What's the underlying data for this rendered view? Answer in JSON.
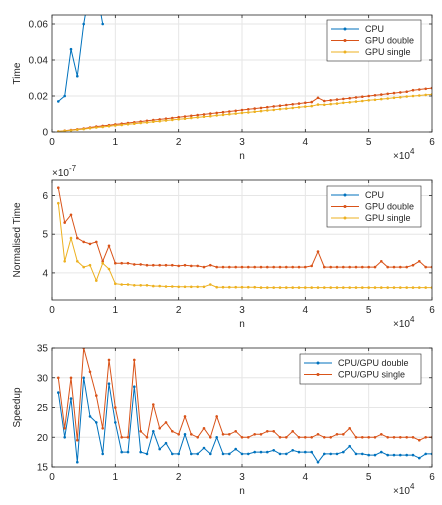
{
  "colors": {
    "cpu": "#0072BD",
    "gpu_double": "#D95319",
    "gpu_single": "#EDB120",
    "speedup_double": "#0072BD",
    "speedup_single": "#D95319",
    "axis": "#262626",
    "grid": "#e6e6e6"
  },
  "chart_data": [
    {
      "type": "line",
      "xlabel": "n",
      "ylabel": "Time",
      "x_multiplier_label": "×10",
      "x_multiplier_exp": "4",
      "y_multiplier_label": "",
      "y_multiplier_exp": "",
      "xlim": [
        0,
        60000
      ],
      "ylim": [
        0,
        0.065
      ],
      "x_ticks": [
        0,
        10000,
        20000,
        30000,
        40000,
        50000,
        60000
      ],
      "x_tick_labels": [
        "0",
        "1",
        "2",
        "3",
        "4",
        "5",
        "6"
      ],
      "y_ticks": [
        0,
        0.02,
        0.04,
        0.06
      ],
      "y_tick_labels": [
        "0",
        "0.02",
        "0.04",
        "0.06"
      ],
      "grid": true,
      "legend_position": "top-right",
      "series": [
        {
          "name": "CPU",
          "color_key": "cpu",
          "x": [
            1000,
            2000,
            3000,
            4000,
            5000,
            6000,
            7000,
            8000
          ],
          "y": [
            0.017,
            0.02,
            0.046,
            0.031,
            0.06,
            0.08,
            0.08,
            0.06
          ]
        },
        {
          "name": "GPU double",
          "color_key": "gpu_double",
          "x": [
            1000,
            2000,
            3000,
            4000,
            5000,
            6000,
            7000,
            8000,
            9000,
            10000,
            11000,
            12000,
            13000,
            14000,
            15000,
            16000,
            17000,
            18000,
            19000,
            20000,
            21000,
            22000,
            23000,
            24000,
            25000,
            26000,
            27000,
            28000,
            29000,
            30000,
            31000,
            32000,
            33000,
            34000,
            35000,
            36000,
            37000,
            38000,
            39000,
            40000,
            41000,
            42000,
            43000,
            44000,
            45000,
            46000,
            47000,
            48000,
            49000,
            50000,
            51000,
            52000,
            53000,
            54000,
            55000,
            56000,
            57000,
            58000,
            59000,
            60000
          ],
          "y": [
            0.0003,
            0.0007,
            0.0011,
            0.0015,
            0.0019,
            0.0025,
            0.003,
            0.0034,
            0.0038,
            0.0042,
            0.0046,
            0.005,
            0.0054,
            0.0058,
            0.0062,
            0.0066,
            0.007,
            0.0074,
            0.0078,
            0.0082,
            0.0086,
            0.009,
            0.0094,
            0.0098,
            0.0102,
            0.0106,
            0.011,
            0.0114,
            0.0118,
            0.0122,
            0.0126,
            0.013,
            0.0134,
            0.0138,
            0.0142,
            0.0146,
            0.015,
            0.0154,
            0.0158,
            0.0162,
            0.0166,
            0.019,
            0.0172,
            0.0176,
            0.018,
            0.0184,
            0.0188,
            0.0192,
            0.0196,
            0.02,
            0.0204,
            0.0208,
            0.0212,
            0.0216,
            0.022,
            0.0224,
            0.0232,
            0.0236,
            0.024,
            0.0244
          ]
        },
        {
          "name": "GPU single",
          "color_key": "gpu_single",
          "x": [
            1000,
            2000,
            3000,
            4000,
            5000,
            6000,
            7000,
            8000,
            9000,
            10000,
            11000,
            12000,
            13000,
            14000,
            15000,
            16000,
            17000,
            18000,
            19000,
            20000,
            21000,
            22000,
            23000,
            24000,
            25000,
            26000,
            27000,
            28000,
            29000,
            30000,
            31000,
            32000,
            33000,
            34000,
            35000,
            36000,
            37000,
            38000,
            39000,
            40000,
            41000,
            42000,
            43000,
            44000,
            45000,
            46000,
            47000,
            48000,
            49000,
            50000,
            51000,
            52000,
            53000,
            54000,
            55000,
            56000,
            57000,
            58000,
            59000,
            60000
          ],
          "y": [
            0.0003,
            0.0006,
            0.0009,
            0.0013,
            0.0016,
            0.0021,
            0.0025,
            0.0028,
            0.0032,
            0.0036,
            0.0039,
            0.0043,
            0.0046,
            0.005,
            0.0053,
            0.0057,
            0.006,
            0.0064,
            0.0067,
            0.0071,
            0.0074,
            0.0078,
            0.0081,
            0.0085,
            0.0088,
            0.0092,
            0.0095,
            0.0099,
            0.0102,
            0.0106,
            0.0109,
            0.0113,
            0.0116,
            0.012,
            0.0123,
            0.0127,
            0.013,
            0.0134,
            0.0137,
            0.0141,
            0.0144,
            0.0152,
            0.0151,
            0.0155,
            0.0158,
            0.0162,
            0.0165,
            0.0169,
            0.0172,
            0.0176,
            0.0179,
            0.0183,
            0.0186,
            0.019,
            0.0193,
            0.0197,
            0.02,
            0.0203,
            0.0206,
            0.0209
          ]
        }
      ]
    },
    {
      "type": "line",
      "xlabel": "n",
      "ylabel": "Normalised Time",
      "x_multiplier_label": "×10",
      "x_multiplier_exp": "4",
      "y_multiplier_label": "×10",
      "y_multiplier_exp": "-7",
      "xlim": [
        0,
        60000
      ],
      "ylim": [
        3.3,
        6.4
      ],
      "x_ticks": [
        0,
        10000,
        20000,
        30000,
        40000,
        50000,
        60000
      ],
      "x_tick_labels": [
        "0",
        "1",
        "2",
        "3",
        "4",
        "5",
        "6"
      ],
      "y_ticks": [
        4,
        5,
        6
      ],
      "y_tick_labels": [
        "4",
        "5",
        "6"
      ],
      "grid": true,
      "legend_position": "top-right",
      "series": [
        {
          "name": "CPU",
          "color_key": "cpu",
          "x": [],
          "y": []
        },
        {
          "name": "GPU double",
          "color_key": "gpu_double",
          "x": [
            1000,
            2000,
            3000,
            4000,
            5000,
            6000,
            7000,
            8000,
            9000,
            10000,
            11000,
            12000,
            13000,
            14000,
            15000,
            16000,
            17000,
            18000,
            19000,
            20000,
            21000,
            22000,
            23000,
            24000,
            25000,
            26000,
            27000,
            28000,
            29000,
            30000,
            31000,
            32000,
            33000,
            34000,
            35000,
            36000,
            37000,
            38000,
            39000,
            40000,
            41000,
            42000,
            43000,
            44000,
            45000,
            46000,
            47000,
            48000,
            49000,
            50000,
            51000,
            52000,
            53000,
            54000,
            55000,
            56000,
            57000,
            58000,
            59000,
            60000
          ],
          "y": [
            6.2,
            5.3,
            5.5,
            4.9,
            4.8,
            4.75,
            4.8,
            4.3,
            4.7,
            4.25,
            4.25,
            4.25,
            4.22,
            4.22,
            4.2,
            4.2,
            4.2,
            4.2,
            4.2,
            4.18,
            4.2,
            4.18,
            4.18,
            4.15,
            4.2,
            4.15,
            4.15,
            4.15,
            4.15,
            4.15,
            4.15,
            4.15,
            4.15,
            4.15,
            4.15,
            4.15,
            4.15,
            4.15,
            4.15,
            4.15,
            4.18,
            4.55,
            4.15,
            4.15,
            4.15,
            4.15,
            4.15,
            4.15,
            4.15,
            4.15,
            4.15,
            4.3,
            4.15,
            4.15,
            4.15,
            4.15,
            4.2,
            4.3,
            4.15,
            4.15
          ]
        },
        {
          "name": "GPU single",
          "color_key": "gpu_single",
          "x": [
            1000,
            2000,
            3000,
            4000,
            5000,
            6000,
            7000,
            8000,
            9000,
            10000,
            11000,
            12000,
            13000,
            14000,
            15000,
            16000,
            17000,
            18000,
            19000,
            20000,
            21000,
            22000,
            23000,
            24000,
            25000,
            26000,
            27000,
            28000,
            29000,
            30000,
            31000,
            32000,
            33000,
            34000,
            35000,
            36000,
            37000,
            38000,
            39000,
            40000,
            41000,
            42000,
            43000,
            44000,
            45000,
            46000,
            47000,
            48000,
            49000,
            50000,
            51000,
            52000,
            53000,
            54000,
            55000,
            56000,
            57000,
            58000,
            59000,
            60000
          ],
          "y": [
            5.8,
            4.3,
            4.9,
            4.3,
            4.15,
            4.2,
            3.8,
            4.25,
            4.1,
            3.72,
            3.7,
            3.7,
            3.68,
            3.68,
            3.68,
            3.66,
            3.66,
            3.65,
            3.65,
            3.64,
            3.64,
            3.64,
            3.64,
            3.64,
            3.7,
            3.63,
            3.63,
            3.63,
            3.63,
            3.63,
            3.63,
            3.63,
            3.62,
            3.62,
            3.62,
            3.62,
            3.62,
            3.62,
            3.62,
            3.62,
            3.62,
            3.62,
            3.62,
            3.62,
            3.62,
            3.62,
            3.62,
            3.62,
            3.62,
            3.62,
            3.62,
            3.62,
            3.62,
            3.62,
            3.62,
            3.62,
            3.62,
            3.62,
            3.62,
            3.62
          ]
        }
      ]
    },
    {
      "type": "line",
      "xlabel": "n",
      "ylabel": "Speedup",
      "x_multiplier_label": "×10",
      "x_multiplier_exp": "4",
      "y_multiplier_label": "",
      "y_multiplier_exp": "",
      "xlim": [
        0,
        60000
      ],
      "ylim": [
        15,
        35
      ],
      "x_ticks": [
        0,
        10000,
        20000,
        30000,
        40000,
        50000,
        60000
      ],
      "x_tick_labels": [
        "0",
        "1",
        "2",
        "3",
        "4",
        "5",
        "6"
      ],
      "y_ticks": [
        15,
        20,
        25,
        30,
        35
      ],
      "y_tick_labels": [
        "15",
        "20",
        "25",
        "30",
        "35"
      ],
      "grid": true,
      "legend_position": "top-right",
      "series": [
        {
          "name": "CPU/GPU double",
          "color_key": "speedup_double",
          "x": [
            1000,
            2000,
            3000,
            4000,
            5000,
            6000,
            7000,
            8000,
            9000,
            10000,
            11000,
            12000,
            13000,
            14000,
            15000,
            16000,
            17000,
            18000,
            19000,
            20000,
            21000,
            22000,
            23000,
            24000,
            25000,
            26000,
            27000,
            28000,
            29000,
            30000,
            31000,
            32000,
            33000,
            34000,
            35000,
            36000,
            37000,
            38000,
            39000,
            40000,
            41000,
            42000,
            43000,
            44000,
            45000,
            46000,
            47000,
            48000,
            49000,
            50000,
            51000,
            52000,
            53000,
            54000,
            55000,
            56000,
            57000,
            58000,
            59000,
            60000
          ],
          "y": [
            27.5,
            20,
            26.5,
            15.8,
            30,
            23.5,
            22.5,
            17.2,
            29,
            22.5,
            17.5,
            17.5,
            28.5,
            17.5,
            17.2,
            21,
            18,
            19,
            17.2,
            17.2,
            20.5,
            17.2,
            17.2,
            18.2,
            17.2,
            20,
            17.2,
            17.2,
            18,
            17.2,
            17.2,
            17.5,
            17.5,
            17.5,
            17.8,
            17.2,
            17.2,
            17.8,
            17.5,
            17.5,
            17.5,
            15.8,
            17.2,
            17.2,
            17.2,
            17.5,
            18.5,
            17.2,
            17.2,
            17,
            17,
            17.5,
            17,
            17,
            17,
            17,
            17,
            16.5,
            17.2,
            17.2
          ]
        },
        {
          "name": "CPU/GPU single",
          "color_key": "speedup_single",
          "x": [
            1000,
            2000,
            3000,
            4000,
            5000,
            6000,
            7000,
            8000,
            9000,
            10000,
            11000,
            12000,
            13000,
            14000,
            15000,
            16000,
            17000,
            18000,
            19000,
            20000,
            21000,
            22000,
            23000,
            24000,
            25000,
            26000,
            27000,
            28000,
            29000,
            30000,
            31000,
            32000,
            33000,
            34000,
            35000,
            36000,
            37000,
            38000,
            39000,
            40000,
            41000,
            42000,
            43000,
            44000,
            45000,
            46000,
            47000,
            48000,
            49000,
            50000,
            51000,
            52000,
            53000,
            54000,
            55000,
            56000,
            57000,
            58000,
            59000,
            60000
          ],
          "y": [
            30,
            21.5,
            30,
            19.5,
            35,
            31,
            27,
            21.5,
            33,
            25,
            20,
            20,
            33,
            21,
            20,
            25.5,
            21.5,
            22.5,
            21,
            20.5,
            23.5,
            20.5,
            20,
            21.5,
            20,
            23.5,
            20.5,
            20.5,
            21,
            20,
            20,
            20.5,
            20.5,
            21,
            21,
            20,
            20,
            21,
            20,
            20,
            20,
            20.5,
            20,
            20,
            20.5,
            20.5,
            21.5,
            20,
            20,
            20,
            20,
            20.5,
            20,
            20,
            20,
            20,
            20,
            19.5,
            20,
            20
          ]
        }
      ]
    }
  ]
}
